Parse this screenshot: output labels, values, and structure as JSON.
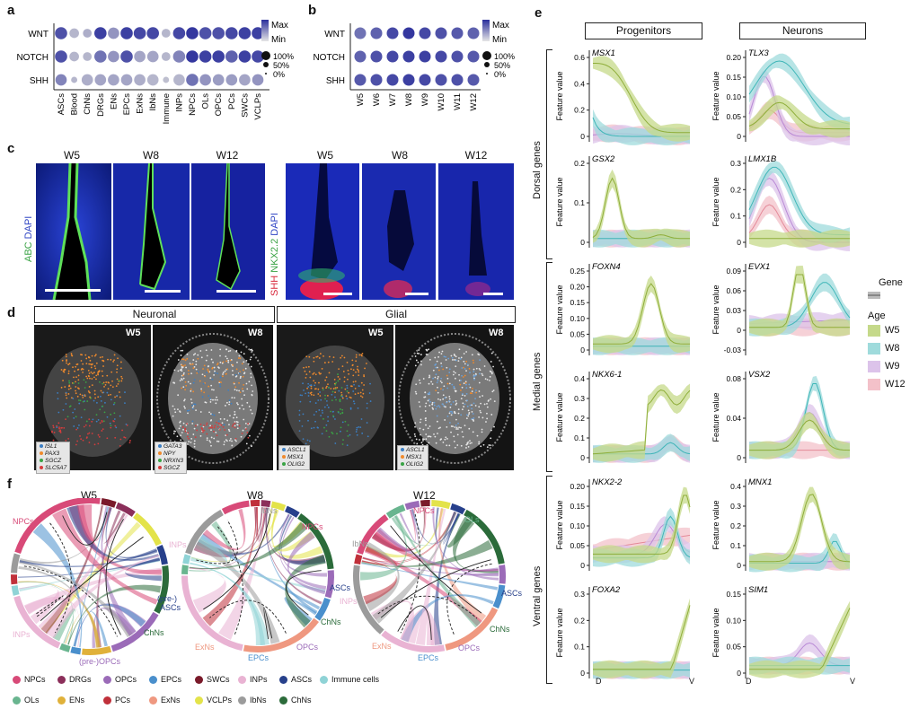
{
  "panels": {
    "a": "a",
    "b": "b",
    "c": "c",
    "d": "d",
    "e": "e",
    "f": "f"
  },
  "a": {
    "rows": [
      "WNT",
      "NOTCH",
      "SHH"
    ],
    "cols": [
      "ASCs",
      "Blood",
      "ChNs",
      "DRGs",
      "ENs",
      "EPCs",
      "ExNs",
      "IbNs",
      "Immune",
      "INPs",
      "NPCs",
      "OLs",
      "OPCs",
      "PCs",
      "SWCs",
      "VCLPs"
    ],
    "scale_max": "Max",
    "scale_min": "Min",
    "size_labels": [
      "100%",
      "50%",
      "0%"
    ],
    "values": [
      [
        0.8,
        0.2,
        0.25,
        0.9,
        0.4,
        0.9,
        0.85,
        0.85,
        0.2,
        0.85,
        0.95,
        0.8,
        0.8,
        0.85,
        0.9,
        0.9
      ],
      [
        0.8,
        0.2,
        0.2,
        0.6,
        0.4,
        0.8,
        0.3,
        0.3,
        0.2,
        0.5,
        0.95,
        0.9,
        0.9,
        0.7,
        0.9,
        0.85
      ],
      [
        0.5,
        0.2,
        0.25,
        0.3,
        0.3,
        0.3,
        0.25,
        0.2,
        0.15,
        0.2,
        0.6,
        0.4,
        0.35,
        0.35,
        0.3,
        0.4
      ]
    ],
    "sizes": [
      [
        1,
        0.7,
        0.6,
        1,
        0.9,
        1,
        1,
        1,
        0.6,
        1,
        1,
        1,
        1,
        1,
        1,
        1
      ],
      [
        1,
        0.7,
        0.6,
        1,
        0.9,
        1,
        0.9,
        0.9,
        0.6,
        1,
        1,
        1,
        1,
        1,
        1,
        1
      ],
      [
        0.9,
        0.3,
        0.9,
        0.9,
        0.9,
        0.9,
        0.9,
        0.9,
        0.3,
        0.9,
        1,
        0.9,
        0.9,
        0.9,
        0.9,
        0.9
      ]
    ]
  },
  "b": {
    "rows": [
      "WNT",
      "NOTCH",
      "SHH"
    ],
    "cols": [
      "W5",
      "W6",
      "W7",
      "W8",
      "W9",
      "W10",
      "W11",
      "W12"
    ],
    "scale_max": "Max",
    "scale_min": "Min",
    "size_labels": [
      "100%",
      "50%",
      "0%"
    ],
    "values": [
      [
        0.6,
        0.7,
        0.85,
        0.95,
        0.85,
        0.8,
        0.75,
        0.7
      ],
      [
        0.7,
        0.8,
        0.85,
        0.9,
        0.9,
        0.85,
        0.8,
        0.75
      ],
      [
        0.75,
        0.8,
        0.85,
        0.9,
        0.85,
        0.8,
        0.8,
        0.75
      ]
    ]
  },
  "c": {
    "weeks_left": [
      "W5",
      "W8",
      "W12"
    ],
    "weeks_right": [
      "W5",
      "W8",
      "W12"
    ],
    "stain_left": {
      "abc": "ABC",
      "dapi": "DAPI"
    },
    "stain_right": {
      "shh": "SHH",
      "nkx": "NKX2.2",
      "dapi": "DAPI"
    }
  },
  "d": {
    "neuronal": "Neuronal",
    "glial": "Glial",
    "weeks": [
      "W5",
      "W8",
      "W5",
      "W8"
    ],
    "legends": [
      [
        {
          "g": "ISL1",
          "c": "#3b7fc4"
        },
        {
          "g": "PAX3",
          "c": "#f08a2c"
        },
        {
          "g": "SGCZ",
          "c": "#3aa345"
        },
        {
          "g": "SLC5A7",
          "c": "#d63c3c"
        }
      ],
      [
        {
          "g": "GATA3",
          "c": "#3b7fc4"
        },
        {
          "g": "NPY",
          "c": "#f08a2c"
        },
        {
          "g": "NRXN3",
          "c": "#3aa345"
        },
        {
          "g": "SGCZ",
          "c": "#d63c3c"
        }
      ],
      [
        {
          "g": "ASCL1",
          "c": "#3b7fc4"
        },
        {
          "g": "MSX1",
          "c": "#f08a2c"
        },
        {
          "g": "OLIG2",
          "c": "#3aa345"
        }
      ],
      [
        {
          "g": "ASCL1",
          "c": "#3b7fc4"
        },
        {
          "g": "MSX1",
          "c": "#f08a2c"
        },
        {
          "g": "OLIG2",
          "c": "#3aa345"
        }
      ]
    ]
  },
  "e": {
    "col_progenitors": "Progenitors",
    "col_neurons": "Neurons",
    "groups": [
      "Dorsal genes",
      "Medial genes",
      "Ventral genes"
    ],
    "ylabel": "Feature value",
    "x_start": "D",
    "x_end": "V",
    "legend_gene_title": "Gene",
    "legend_age_title": "Age",
    "ages": [
      {
        "name": "W5",
        "color": "#c5d98a"
      },
      {
        "name": "W8",
        "color": "#9fdbdc"
      },
      {
        "name": "W9",
        "color": "#dcc3ea"
      },
      {
        "name": "W12",
        "color": "#f3c1c9"
      }
    ],
    "plots": [
      {
        "gene": "MSX1",
        "ticks": [
          "0.6",
          "0.4",
          "0.2",
          "0"
        ]
      },
      {
        "gene": "TLX3",
        "ticks": [
          "0.20",
          "0.15",
          "0.10",
          "0.05",
          "0"
        ]
      },
      {
        "gene": "GSX2",
        "ticks": [
          "0.2",
          "0.1",
          "0"
        ]
      },
      {
        "gene": "LMX1B",
        "ticks": [
          "0.3",
          "0.2",
          "0.1",
          "0"
        ]
      },
      {
        "gene": "FOXN4",
        "ticks": [
          "0.25",
          "0.20",
          "0.15",
          "0.10",
          "0.05",
          "0"
        ]
      },
      {
        "gene": "EVX1",
        "ticks": [
          "0.09",
          "0.06",
          "0.03",
          "0",
          "-0.03"
        ]
      },
      {
        "gene": "NKX6-1",
        "ticks": [
          "0.4",
          "0.3",
          "0.2",
          "0.1",
          "0"
        ]
      },
      {
        "gene": "VSX2",
        "ticks": [
          "0.08",
          "0.04",
          "0"
        ]
      },
      {
        "gene": "NKX2-2",
        "ticks": [
          "0.20",
          "0.15",
          "0.10",
          "0.05",
          "0"
        ]
      },
      {
        "gene": "MNX1",
        "ticks": [
          "0.4",
          "0.3",
          "0.2",
          "0.1",
          "0"
        ]
      },
      {
        "gene": "FOXA2",
        "ticks": [
          "0.3",
          "0.2",
          "0.1",
          "0"
        ]
      },
      {
        "gene": "SIM1",
        "ticks": [
          "0.15",
          "0.10",
          "0.05",
          "0"
        ]
      }
    ]
  },
  "f": {
    "weeks": [
      "W5",
      "W8",
      "W12"
    ],
    "w5_labels": {
      "npcs": "NPCs",
      "inps": "INPs",
      "asc1": "(pre-)",
      "asc2": "ASCs",
      "chns": "ChNs",
      "opcs": "(pre-)OPCs"
    },
    "w8_labels": {
      "ibns": "IbNs",
      "npcs": "NPCs",
      "inps": "INPs",
      "ascs": "ASCs",
      "chns": "ChNs",
      "exns": "ExNs",
      "epcs": "EPCs",
      "opcs": "OPCs"
    },
    "w12_labels": {
      "npcs": "NPCs",
      "ols": "OLs",
      "ibns": "IbNs",
      "inps": "INPs",
      "ascs": "ASCs",
      "chns": "ChNs",
      "exns": "ExNs",
      "epcs": "EPCs",
      "opcs": "OPCs"
    },
    "legend": [
      {
        "name": "NPCs",
        "color": "#d84a78"
      },
      {
        "name": "DRGs",
        "color": "#8b2f5a"
      },
      {
        "name": "OPCs",
        "color": "#9b6bb8"
      },
      {
        "name": "EPCs",
        "color": "#4a8fcc"
      },
      {
        "name": "SWCs",
        "color": "#7a1a2a"
      },
      {
        "name": "INPs",
        "color": "#e9b3d3"
      },
      {
        "name": "ASCs",
        "color": "#27408b"
      },
      {
        "name": "Immune cells",
        "color": "#8fd3d6"
      },
      {
        "name": "OLs",
        "color": "#69b58f"
      },
      {
        "name": "ENs",
        "color": "#e0b13a"
      },
      {
        "name": "PCs",
        "color": "#c0303a"
      },
      {
        "name": "ExNs",
        "color": "#ef9880"
      },
      {
        "name": "VCLPs",
        "color": "#e3e34a"
      },
      {
        "name": "IbNs",
        "color": "#9b9b9b"
      },
      {
        "name": "ChNs",
        "color": "#2b6b3a"
      }
    ]
  }
}
